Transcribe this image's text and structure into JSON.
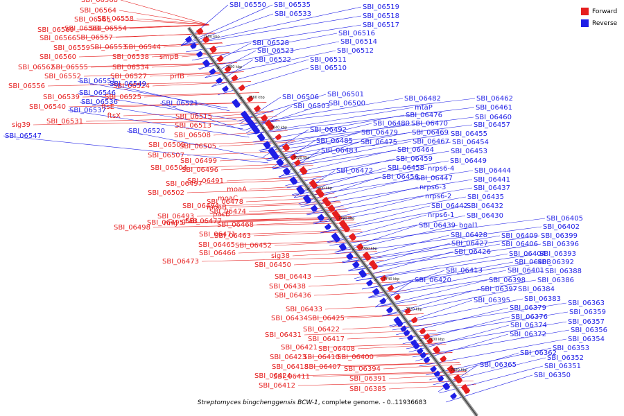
{
  "legend": {
    "forward_label": "Forward",
    "reverse_label": "Reverse",
    "forward_color": "#e61e1e",
    "reverse_color": "#1e1ee6"
  },
  "caption": {
    "organism": "Streptomyces bingchenggensis BCW-1",
    "rest": ", complete genome. - 0..11936683"
  },
  "ticks": [
    "7900 kbp",
    "7880 kbp",
    "7860 kbp",
    "7840 kbp",
    "7820 kbp",
    "7800 kbp",
    "7780 kbp",
    "7760 kbp",
    "7740 kbp",
    "7720 kbp",
    "7700 kbp",
    "7680 kbp"
  ],
  "forward_genes": [
    "SBI_06568",
    "SBI_06564",
    "SBI_06565",
    "SBI_06558",
    "SBI_06569",
    "SBI_06561",
    "SBI_06554",
    "SBI_06566",
    "SBI_06557",
    "SBI_06559",
    "SBI_06553",
    "SBI_06544",
    "SBI_06560",
    "SBI_06538",
    "smpB",
    "SBI_06562",
    "SBI_06555",
    "SBI_06534",
    "SBI_06552",
    "SBI_06527",
    "prfB",
    "SBI_06556",
    "SBI_06524",
    "SBI_06539",
    "SBI_06525",
    "SBI_06540",
    "ftsE",
    "ftsX",
    "SBI_06531",
    "sig39",
    "SBI_06515",
    "SBI_06513",
    "SBI_06508",
    "SBI_06509",
    "SBI_06505",
    "SBI_06507",
    "SBI_06499",
    "SBI_06504",
    "SBI_06496",
    "SBI_06491",
    "SBI_06497",
    "moaA",
    "SBI_06502",
    "moaC",
    "SBI_06478",
    "SBI_06494",
    "moaB",
    "pacB",
    "SBI_06493",
    "SBI_06474",
    "SBI_06495",
    "rimJ",
    "gtaB",
    "SBI_06477",
    "SBI_06468",
    "SBI_06498",
    "SBI_06471",
    "SBI_06463",
    "SBI_06465",
    "SBI_06452",
    "SBI_06466",
    "SBI_06473",
    "sig38",
    "SBI_06450",
    "SBI_06443",
    "SBI_06438",
    "SBI_06436",
    "SBI_06433",
    "SBI_06434",
    "SBI_06425",
    "SBI_06422",
    "SBI_06431",
    "SBI_06417",
    "SBI_06421",
    "SBI_06408",
    "SBI_06423",
    "SBI_06410",
    "SBI_06400",
    "SBI_06418",
    "SBI_06407",
    "SBI_06394",
    "SBI_06424",
    "SBI_06411",
    "SBI_06391",
    "SBI_06412",
    "SBI_06385"
  ],
  "reverse_genes": [
    "SBI_06550",
    "SBI_06535",
    "SBI_06533",
    "SBI_06519",
    "SBI_06518",
    "SBI_06517",
    "SBI_06516",
    "SBI_06514",
    "SBI_06528",
    "SBI_06523",
    "SBI_06512",
    "SBI_06522",
    "SBI_06511",
    "SBI_06510",
    "SBI_06551",
    "SBI_06546",
    "SBI_06536",
    "SBI_06537",
    "SBI_06549",
    "SBI_06521",
    "SBI_06547",
    "SBI_06520",
    "SBI_06506",
    "SBI_06501",
    "SBI_06503",
    "SBI_06500",
    "SBI_06482",
    "mtaP",
    "SBI_06476",
    "SBI_06480",
    "SBI_06470",
    "SBI_06492",
    "SBI_06479",
    "SBI_06469",
    "SBI_06475",
    "SBI_06467",
    "SBI_06485",
    "SBI_06483",
    "SBI_06464",
    "SBI_06459",
    "SBI_06472",
    "SBI_06458",
    "SBI_06456",
    "nrps6-4",
    "SBI_06447",
    "nrps6-3",
    "nrps6-2",
    "SBI_06442",
    "nrps6-1",
    "SBI_06439",
    "bgal1",
    "SBI_06462",
    "SBI_06461",
    "SBI_06460",
    "SBI_06457",
    "SBI_06455",
    "SBI_06454",
    "SBI_06453",
    "SBI_06449",
    "SBI_06444",
    "SBI_06441",
    "SBI_06437",
    "SBI_06435",
    "SBI_06432",
    "SBI_06430",
    "SBI_06428",
    "SBI_06427",
    "SBI_06426",
    "SBI_06413",
    "SBI_06420",
    "SBI_06405",
    "SBI_06402",
    "SBI_06409",
    "SBI_06399",
    "SBI_06406",
    "SBI_06396",
    "SBI_06404",
    "SBI_06393",
    "SBI_06403",
    "SBI_06392",
    "SBI_06401",
    "SBI_06388",
    "SBI_06398",
    "SBI_06386",
    "SBI_06397",
    "SBI_06384",
    "SBI_06383",
    "SBI_06395",
    "SBI_06379",
    "SBI_06376",
    "SBI_06374",
    "SBI_06372",
    "SBI_06363",
    "SBI_06359",
    "SBI_06357",
    "SBI_06356",
    "SBI_06354",
    "SBI_06353",
    "SBI_06362",
    "SBI_06352",
    "SBI_06365",
    "SBI_06351",
    "SBI_06350"
  ]
}
